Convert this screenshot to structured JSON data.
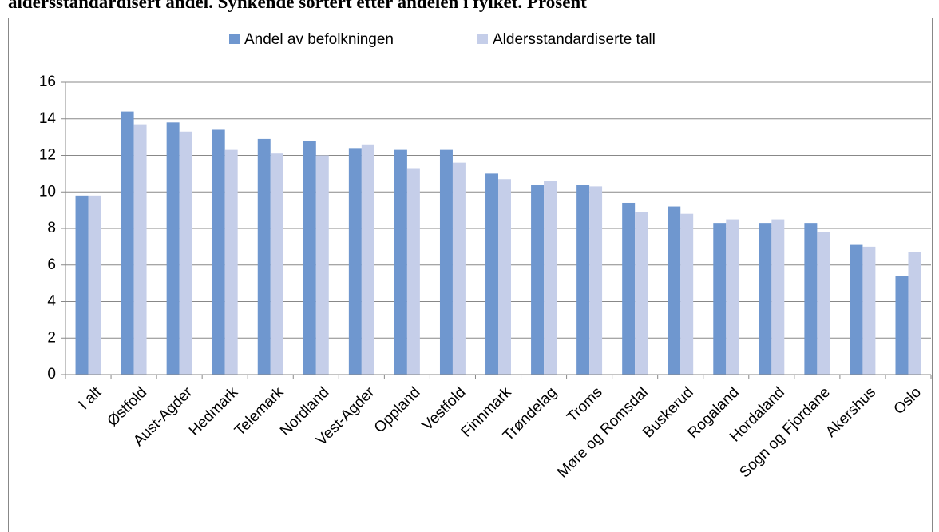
{
  "chart_data": {
    "type": "bar",
    "title": "aldersstandardisert andel. Synkende sortert etter andelen i fylket. Prosent",
    "categories": [
      "I alt",
      "Østfold",
      "Aust-Agder",
      "Hedmark",
      "Telemark",
      "Nordland",
      "Vest-Agder",
      "Oppland",
      "Vestfold",
      "Finnmark",
      "Trøndelag",
      "Troms",
      "Møre og Romsdal",
      "Buskerud",
      "Rogaland",
      "Hordaland",
      "Sogn og Fjordane",
      "Akershus",
      "Oslo"
    ],
    "series": [
      {
        "name": "Andel av befolkningen",
        "color": "#6f97cf",
        "values": [
          9.8,
          14.4,
          13.8,
          13.4,
          12.9,
          12.8,
          12.4,
          12.3,
          12.3,
          11.0,
          10.4,
          10.4,
          9.4,
          9.2,
          8.3,
          8.3,
          8.3,
          7.1,
          5.4
        ]
      },
      {
        "name": "Aldersstandardiserte tall",
        "color": "#c5cee9",
        "values": [
          9.8,
          13.7,
          13.3,
          12.3,
          12.1,
          12.0,
          12.6,
          11.3,
          11.6,
          10.7,
          10.6,
          10.3,
          8.9,
          8.8,
          8.5,
          8.5,
          7.8,
          7.0,
          6.7
        ]
      }
    ],
    "ylim": [
      0,
      16
    ],
    "yticks": [
      0,
      2,
      4,
      6,
      8,
      10,
      12,
      14,
      16
    ],
    "grid": true,
    "legend": "top"
  }
}
